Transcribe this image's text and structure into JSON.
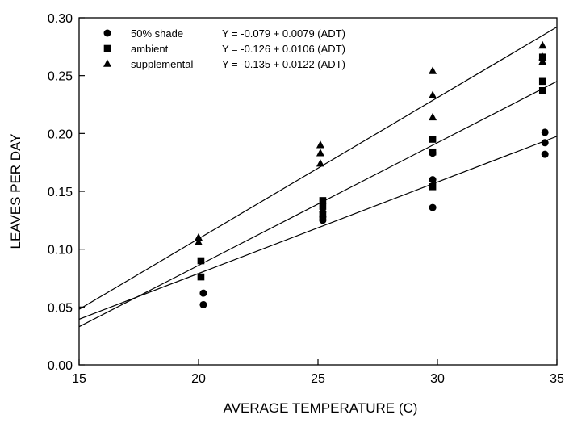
{
  "chart_data": {
    "type": "scatter",
    "title": "",
    "xlabel": "AVERAGE TEMPERATURE (C)",
    "ylabel": "LEAVES PER DAY",
    "xlim": [
      15,
      35
    ],
    "ylim": [
      0.0,
      0.3
    ],
    "x_ticks": [
      15,
      20,
      25,
      30,
      35
    ],
    "x_tick_labels": [
      "15",
      "20",
      "25",
      "30",
      "35"
    ],
    "y_ticks": [
      0.0,
      0.05,
      0.1,
      0.15,
      0.2,
      0.25,
      0.3
    ],
    "y_tick_labels": [
      "0.00",
      "0.05",
      "0.10",
      "0.15",
      "0.20",
      "0.25",
      "0.30"
    ],
    "grid": false,
    "legend_position": "top-left",
    "series": [
      {
        "name": "50% shade",
        "marker": "circle",
        "equation": "Y = -0.079 + 0.0079 (ADT)",
        "intercept": -0.079,
        "slope": 0.0079,
        "points": [
          {
            "x": 20.2,
            "y": 0.052
          },
          {
            "x": 20.2,
            "y": 0.062
          },
          {
            "x": 25.2,
            "y": 0.125
          },
          {
            "x": 25.2,
            "y": 0.128
          },
          {
            "x": 25.2,
            "y": 0.132
          },
          {
            "x": 29.8,
            "y": 0.136
          },
          {
            "x": 29.8,
            "y": 0.16
          },
          {
            "x": 29.8,
            "y": 0.183
          },
          {
            "x": 34.5,
            "y": 0.182
          },
          {
            "x": 34.5,
            "y": 0.192
          },
          {
            "x": 34.5,
            "y": 0.201
          }
        ]
      },
      {
        "name": "ambient",
        "marker": "square",
        "equation": "Y = -0.126 + 0.0106 (ADT)",
        "intercept": -0.126,
        "slope": 0.0106,
        "points": [
          {
            "x": 20.1,
            "y": 0.076
          },
          {
            "x": 20.1,
            "y": 0.09
          },
          {
            "x": 25.2,
            "y": 0.128
          },
          {
            "x": 25.2,
            "y": 0.137
          },
          {
            "x": 25.2,
            "y": 0.142
          },
          {
            "x": 29.8,
            "y": 0.154
          },
          {
            "x": 29.8,
            "y": 0.184
          },
          {
            "x": 29.8,
            "y": 0.195
          },
          {
            "x": 34.4,
            "y": 0.237
          },
          {
            "x": 34.4,
            "y": 0.245
          },
          {
            "x": 34.4,
            "y": 0.266
          }
        ]
      },
      {
        "name": "supplemental",
        "marker": "triangle",
        "equation": "Y = -0.135 + 0.0122 (ADT)",
        "intercept": -0.135,
        "slope": 0.0122,
        "points": [
          {
            "x": 20.0,
            "y": 0.106
          },
          {
            "x": 20.0,
            "y": 0.11
          },
          {
            "x": 25.1,
            "y": 0.174
          },
          {
            "x": 25.1,
            "y": 0.183
          },
          {
            "x": 25.1,
            "y": 0.19
          },
          {
            "x": 29.8,
            "y": 0.214
          },
          {
            "x": 29.8,
            "y": 0.233
          },
          {
            "x": 29.8,
            "y": 0.254
          },
          {
            "x": 34.4,
            "y": 0.262
          },
          {
            "x": 34.4,
            "y": 0.266
          },
          {
            "x": 34.4,
            "y": 0.276
          }
        ]
      }
    ]
  },
  "colors": {
    "background": "#ffffff",
    "axis": "#000000",
    "marker": "#000000",
    "regression_line": "#000000"
  }
}
